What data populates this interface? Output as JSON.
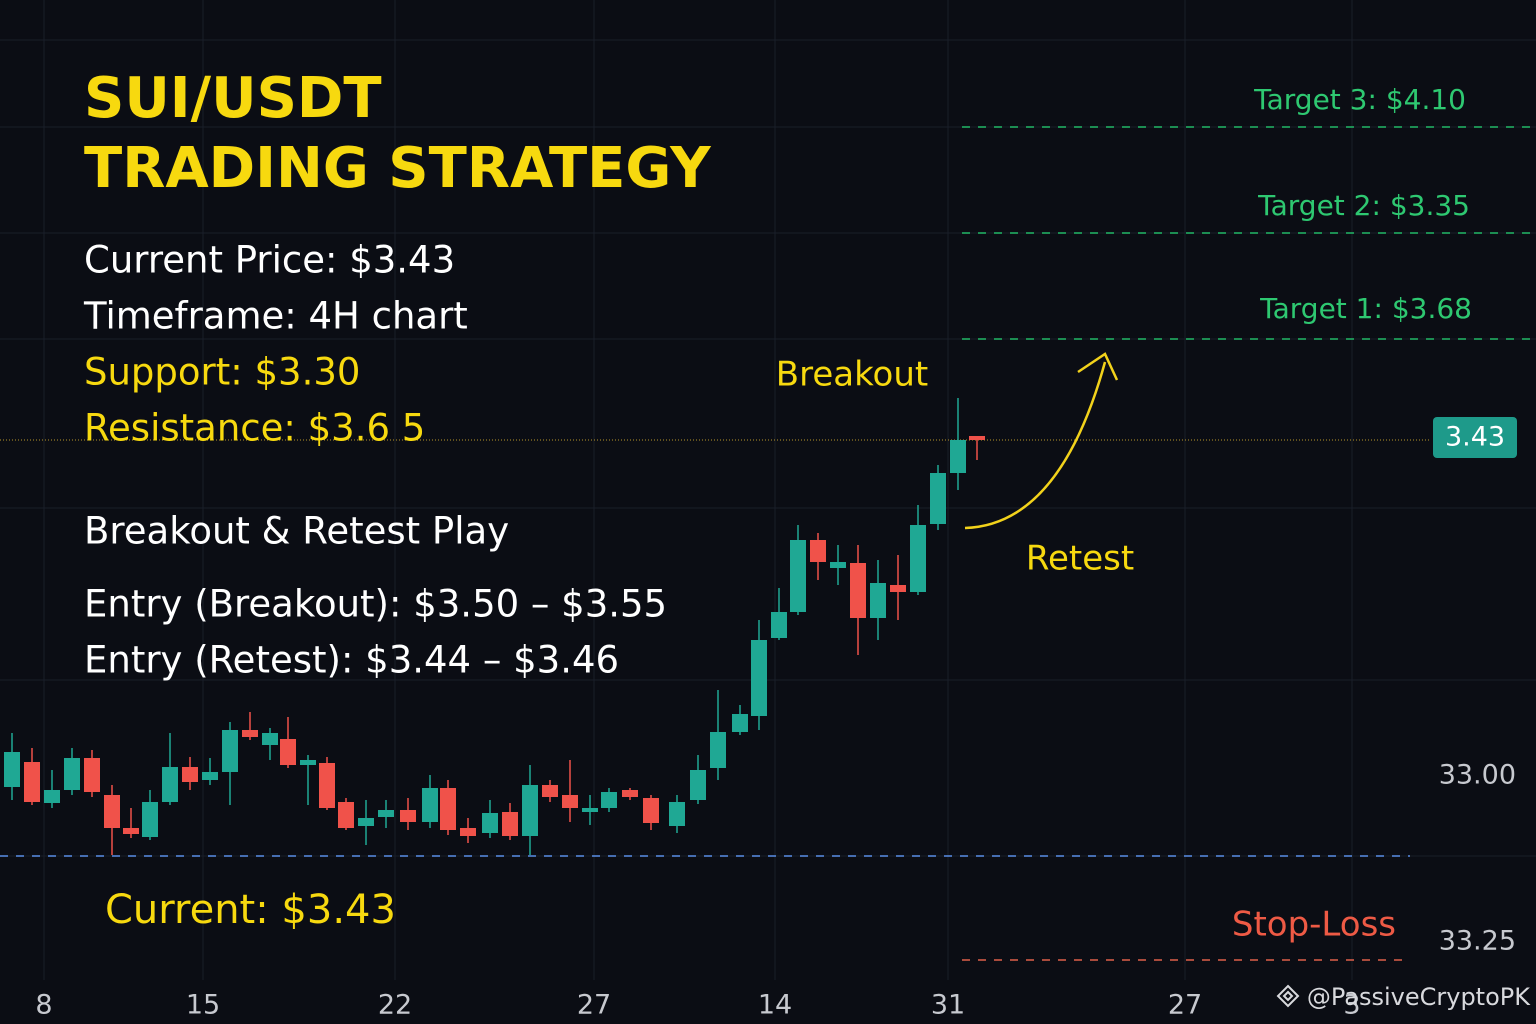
{
  "title": [
    "SUI/USDT",
    "TRADING STRATEGY"
  ],
  "info": [
    "Current Price: $3.43",
    "Timeframe: 4H chart"
  ],
  "levels": [
    "Support: $3.30",
    "Resistance: $3.6 5"
  ],
  "play": "Breakout & Retest Play",
  "entries": [
    "Entry (Breakout): $3.50 – $3.55",
    "Entry (Retest):  $3.44 – $3.46"
  ],
  "targets": [
    "Target 3:  $4.10",
    "Target 2:  $3.35",
    "Target 1:  $3.68"
  ],
  "annotations": {
    "breakout": "Breakout",
    "retest": "Retest",
    "stop_loss": "Stop-Loss",
    "current": "Current: $3.43"
  },
  "price_tag": "3.43",
  "price_axis": [
    "33.00",
    "33.25"
  ],
  "x_axis": [
    "8",
    "15",
    "22",
    "27",
    "14",
    "31",
    "27",
    "3"
  ],
  "watermark": "@PassiveCryptoPK"
}
